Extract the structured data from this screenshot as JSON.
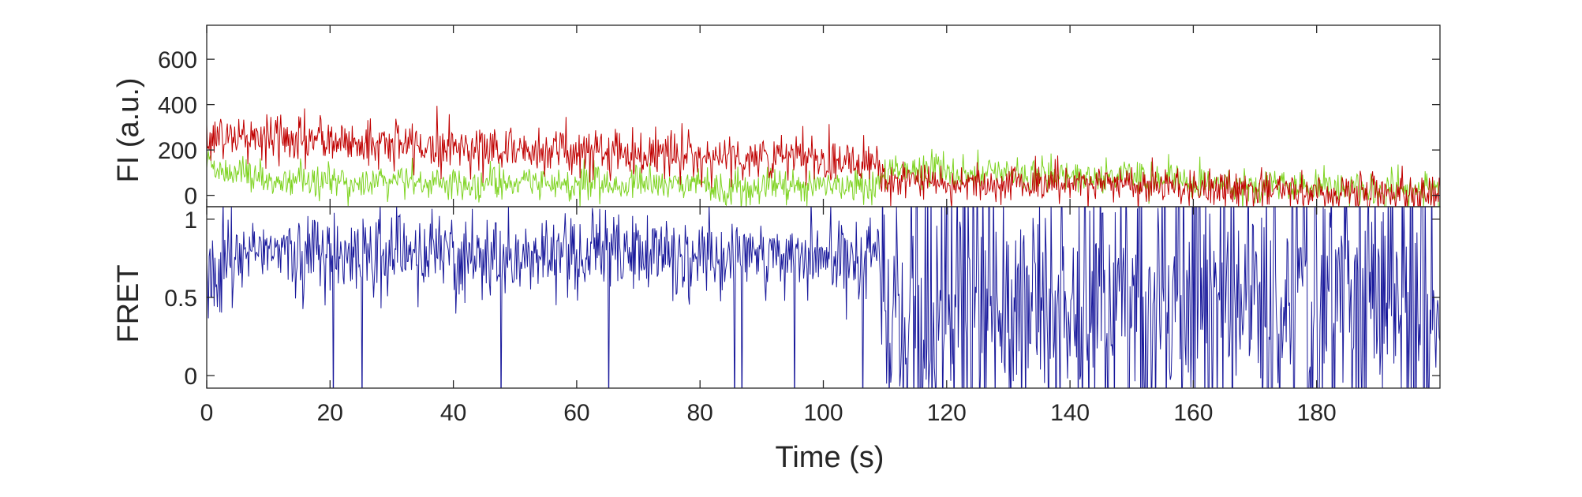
{
  "figure": {
    "xlabel": "Time (s)"
  },
  "chart_data": [
    {
      "type": "line",
      "panel": "top",
      "title": "",
      "xlabel": "",
      "ylabel": "FI (a.u.)",
      "xlim": [
        0,
        200
      ],
      "ylim": [
        -50,
        750
      ],
      "yticks": [
        0,
        200,
        400,
        600
      ],
      "grid": false,
      "series": [
        {
          "color": "#c00000",
          "approximate_points": {
            "x": [
              0,
              10,
              20,
              30,
              40,
              50,
              60,
              70,
              80,
              90,
              100,
              109,
              110,
              120,
              130,
              140,
              150,
              160,
              170,
              180,
              190,
              200
            ],
            "y": [
              260,
              250,
              240,
              225,
              215,
              205,
              195,
              185,
              175,
              165,
              160,
              160,
              60,
              55,
              55,
              50,
              55,
              35,
              20,
              15,
              15,
              10
            ]
          }
        },
        {
          "color": "#7ed321",
          "approximate_points": {
            "x": [
              0,
              10,
              20,
              30,
              40,
              50,
              60,
              70,
              80,
              90,
              100,
              109,
              110,
              120,
              130,
              140,
              150,
              160,
              170,
              180,
              190,
              200
            ],
            "y": [
              130,
              70,
              60,
              60,
              55,
              50,
              50,
              45,
              45,
              40,
              40,
              40,
              120,
              110,
              95,
              80,
              90,
              45,
              40,
              40,
              35,
              30
            ]
          }
        }
      ]
    },
    {
      "type": "line",
      "panel": "bottom",
      "title": "",
      "xlabel": "Time (s)",
      "ylabel": "FRET",
      "xlim": [
        0,
        200
      ],
      "ylim": [
        -0.08,
        1.08
      ],
      "xticks": [
        0,
        20,
        40,
        60,
        80,
        100,
        120,
        140,
        160,
        180
      ],
      "yticks": [
        0,
        0.5,
        1
      ],
      "ytick_labels": [
        "0",
        "0.5",
        "1"
      ],
      "grid": false,
      "series": [
        {
          "color": "#1a1a9c",
          "approximate_points": {
            "x": [
              0,
              10,
              20,
              30,
              40,
              50,
              60,
              70,
              80,
              90,
              100,
              109,
              110,
              120,
              130,
              140,
              150,
              160,
              170,
              180,
              190,
              200
            ],
            "y": [
              0.7,
              0.78,
              0.8,
              0.78,
              0.75,
              0.75,
              0.78,
              0.8,
              0.76,
              0.75,
              0.78,
              0.78,
              0.35,
              0.4,
              0.4,
              0.45,
              0.5,
              0.45,
              0.5,
              0.5,
              0.5,
              0.5
            ]
          }
        }
      ]
    }
  ]
}
